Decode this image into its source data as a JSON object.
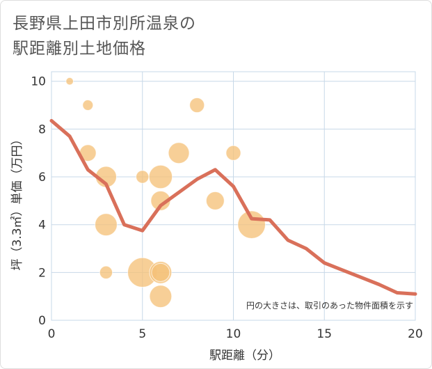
{
  "chart_data": {
    "type": "scatter+line",
    "title_line1": "長野県上田市別所温泉の",
    "title_line2": "駅距離別土地価格",
    "xlabel": "駅距離（分）",
    "ylabel": "坪（3.3㎡）単価（万円）",
    "xlim": [
      0,
      20
    ],
    "ylim": [
      0,
      10.4
    ],
    "xticks": [
      0,
      5,
      10,
      15,
      20
    ],
    "yticks": [
      0,
      2,
      4,
      6,
      8,
      10
    ],
    "note": "円の大きさは、取引のあった物件面積を示す",
    "colors": {
      "bubble": "#f5c27a",
      "line": "#d9705a",
      "grid": "#c7d8e8"
    },
    "bubbles": [
      {
        "x": 1,
        "y": 10.0,
        "size": 1
      },
      {
        "x": 2,
        "y": 9.0,
        "size": 2
      },
      {
        "x": 8,
        "y": 9.0,
        "size": 4
      },
      {
        "x": 2,
        "y": 7.0,
        "size": 5
      },
      {
        "x": 7,
        "y": 7.0,
        "size": 8
      },
      {
        "x": 10,
        "y": 7.0,
        "size": 4
      },
      {
        "x": 3,
        "y": 6.0,
        "size": 8
      },
      {
        "x": 5,
        "y": 6.0,
        "size": 3
      },
      {
        "x": 6,
        "y": 6.0,
        "size": 10
      },
      {
        "x": 6,
        "y": 5.0,
        "size": 7
      },
      {
        "x": 9,
        "y": 5.0,
        "size": 6
      },
      {
        "x": 3,
        "y": 4.0,
        "size": 9
      },
      {
        "x": 11,
        "y": 4.0,
        "size": 14
      },
      {
        "x": 3,
        "y": 2.0,
        "size": 3
      },
      {
        "x": 5,
        "y": 2.0,
        "size": 16
      },
      {
        "x": 6,
        "y": 2.0,
        "size": 9
      },
      {
        "x": 6,
        "y": 2.0,
        "size": 6
      },
      {
        "x": 6,
        "y": 1.0,
        "size": 9
      }
    ],
    "line": {
      "x": [
        0,
        1,
        2,
        3,
        4,
        5,
        6,
        7,
        8,
        9,
        10,
        11,
        12,
        13,
        14,
        15,
        16,
        17,
        18,
        19,
        20
      ],
      "y": [
        8.35,
        7.7,
        6.3,
        5.7,
        4.0,
        3.75,
        4.8,
        5.35,
        5.9,
        6.3,
        5.6,
        4.25,
        4.2,
        3.35,
        3.0,
        2.4,
        2.1,
        1.8,
        1.5,
        1.15,
        1.1
      ]
    }
  }
}
